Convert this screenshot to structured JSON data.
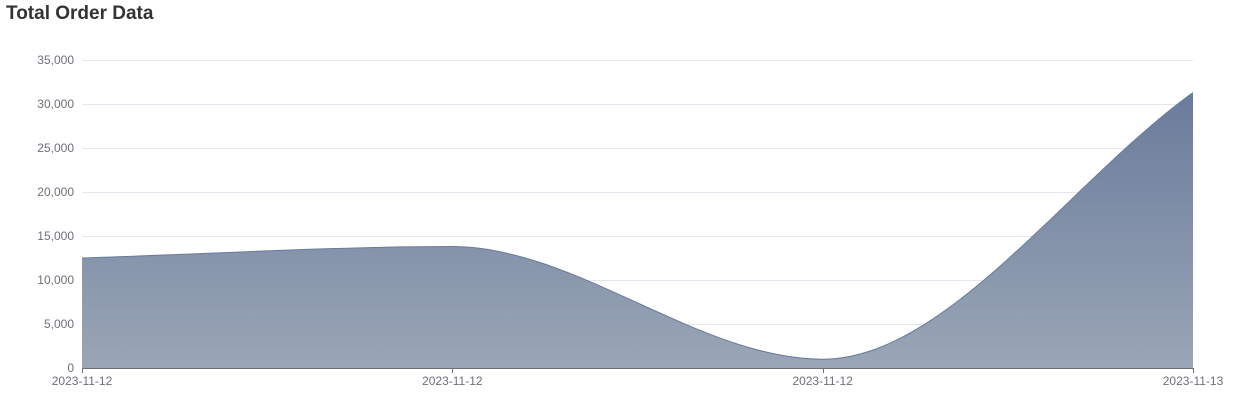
{
  "chart_data": {
    "type": "area",
    "title": "Total Order Data",
    "xlabel": "",
    "ylabel": "",
    "categories": [
      "2023-11-12",
      "2023-11-12",
      "2023-11-12",
      "2023-11-13"
    ],
    "values": [
      12500,
      13800,
      1000,
      31300
    ],
    "ylim": [
      0,
      35000
    ],
    "yticks": [
      0,
      5000,
      10000,
      15000,
      20000,
      25000,
      30000,
      35000
    ],
    "ytick_labels": [
      "0",
      "5,000",
      "10,000",
      "15,000",
      "20,000",
      "25,000",
      "30,000",
      "35,000"
    ],
    "grid": true,
    "smooth": true,
    "colors": {
      "area_top": "#6a7c9c",
      "area_bottom": "#9aa6b6",
      "grid": "#e3e6ee",
      "axis": "#6e7079",
      "text": "#6e7079",
      "title": "#333333"
    }
  }
}
